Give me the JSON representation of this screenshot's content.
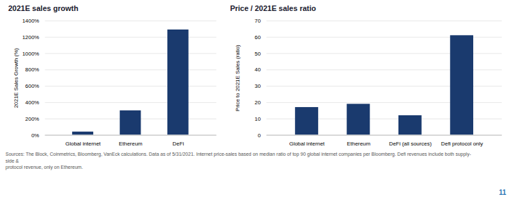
{
  "chart_data": [
    {
      "type": "bar",
      "title": "2021E sales growth",
      "categories": [
        "Global internet",
        "Ethereum",
        "DeFi"
      ],
      "values": [
        40,
        300,
        1290
      ],
      "ylabel": "2021E Sales Growth (%)",
      "ylim": [
        0,
        1400
      ],
      "yticks": [
        {
          "value": 0,
          "label": "0%"
        },
        {
          "value": 200,
          "label": "200%"
        },
        {
          "value": 400,
          "label": "400%"
        },
        {
          "value": 600,
          "label": "600%"
        },
        {
          "value": 800,
          "label": "800%"
        },
        {
          "value": 1000,
          "label": "1000%"
        },
        {
          "value": 1200,
          "label": "1200%"
        },
        {
          "value": 1400,
          "label": "1400%"
        }
      ],
      "color": "#1a3a6e",
      "grid": true
    },
    {
      "type": "bar",
      "title": "Price / 2021E sales ratio",
      "categories": [
        "Global internet",
        "Ethereum",
        "DeFi (all sources)",
        "Defi protocol only"
      ],
      "values": [
        17,
        19,
        12,
        61
      ],
      "ylabel": "Price to 2021E Sales (ratio)",
      "ylim": [
        0,
        70
      ],
      "yticks": [
        0,
        10,
        20,
        30,
        40,
        50,
        60,
        70
      ],
      "color": "#1a3a6e",
      "grid": true
    }
  ],
  "footnote": [
    "Sources: The Block, Coinmetrics, Bloomberg, VanEck calculations. Data as of 5/31/2021. Internet price-sales based on median ratio of top 90 global internet companies per Bloomberg. Defi revenues include both supply-side &",
    "protocol revenue, only on Ethereum."
  ],
  "page_number": "11"
}
